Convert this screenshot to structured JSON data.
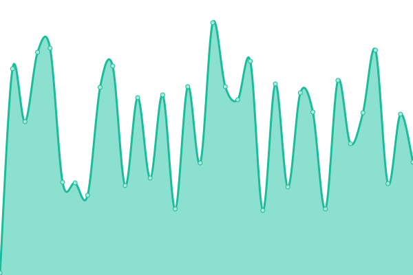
{
  "chart_data": {
    "type": "area",
    "title": "",
    "xlabel": "",
    "ylabel": "",
    "x": [
      0,
      1,
      2,
      3,
      4,
      5,
      6,
      7,
      8,
      9,
      10,
      11,
      12,
      13,
      14,
      15,
      16,
      17,
      18,
      19,
      20,
      21,
      22,
      23,
      24,
      25,
      26,
      27,
      28,
      29,
      30,
      31,
      32,
      33
    ],
    "values": [
      3,
      300,
      223,
      324,
      330,
      135,
      134,
      116,
      273,
      304,
      130,
      258,
      141,
      262,
      96,
      274,
      163,
      367,
      274,
      255,
      311,
      94,
      278,
      128,
      265,
      237,
      96,
      283,
      191,
      236,
      327,
      133,
      234,
      164
    ],
    "ylim": [
      0,
      400
    ],
    "grid": false,
    "axes_visible": false,
    "smooth": true,
    "markers": true,
    "colors": {
      "line": "#1abc9c",
      "fill": "#8ce0cf",
      "marker_fill": "#a8e8da"
    }
  }
}
